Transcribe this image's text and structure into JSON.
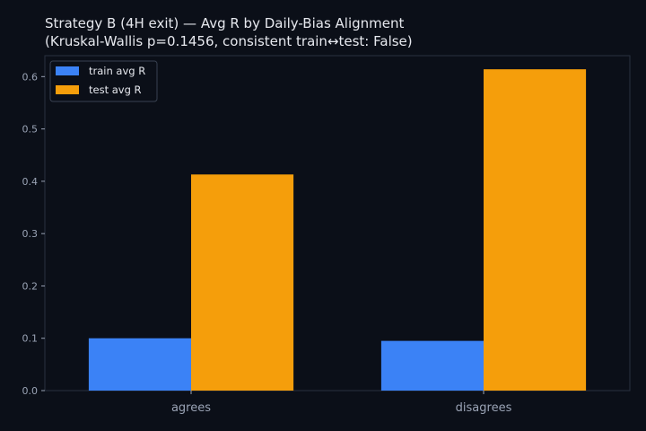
{
  "chart_data": {
    "type": "bar",
    "title": "Strategy B (4H exit) — Avg R by Daily-Bias Alignment",
    "subtitle": "(Kruskal-Wallis p=0.1456, consistent train↔test: False)",
    "categories": [
      "agrees",
      "disagrees"
    ],
    "series": [
      {
        "name": "train avg R",
        "values": [
          0.1,
          0.095
        ],
        "color": "#3b82f6"
      },
      {
        "name": "test avg R",
        "values": [
          0.413,
          0.614
        ],
        "color": "#f59e0b"
      }
    ],
    "yticks": [
      "0.0",
      "0.1",
      "0.2",
      "0.3",
      "0.4",
      "0.5",
      "0.6"
    ],
    "ylim": [
      0,
      0.64
    ],
    "xlabel": "",
    "ylabel": "",
    "grid": false,
    "legend_position": "top-left"
  },
  "colors": {
    "background": "#0b0f18",
    "axis": "#2a3140",
    "text": "#e6e8ee",
    "tick_text": "#9aa3b5"
  }
}
